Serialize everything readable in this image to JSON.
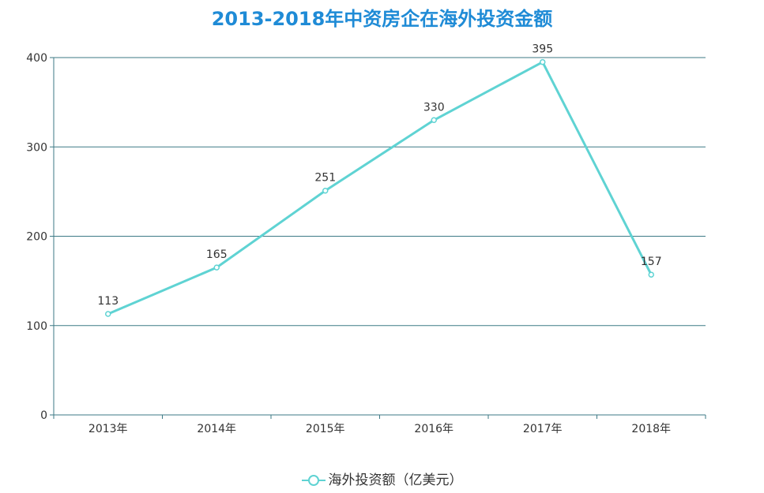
{
  "chart_data": {
    "type": "line",
    "title": "2013-2018年中资房企在海外投资金额",
    "categories": [
      "2013年",
      "2014年",
      "2015年",
      "2016年",
      "2017年",
      "2018年"
    ],
    "series": [
      {
        "name": "海外投资额（亿美元）",
        "values": [
          113,
          165,
          251,
          330,
          395,
          157
        ]
      }
    ],
    "ylim": [
      0,
      400
    ],
    "yticks": [
      0,
      100,
      200,
      300,
      400
    ],
    "grid": true,
    "legend_position": "bottom-center",
    "data_labels": true
  },
  "colors": {
    "title": "#1f8bd6",
    "line": "#5fd3d3",
    "grid": "#3d7a86",
    "axis": "#3d7a86",
    "text": "#333333"
  }
}
